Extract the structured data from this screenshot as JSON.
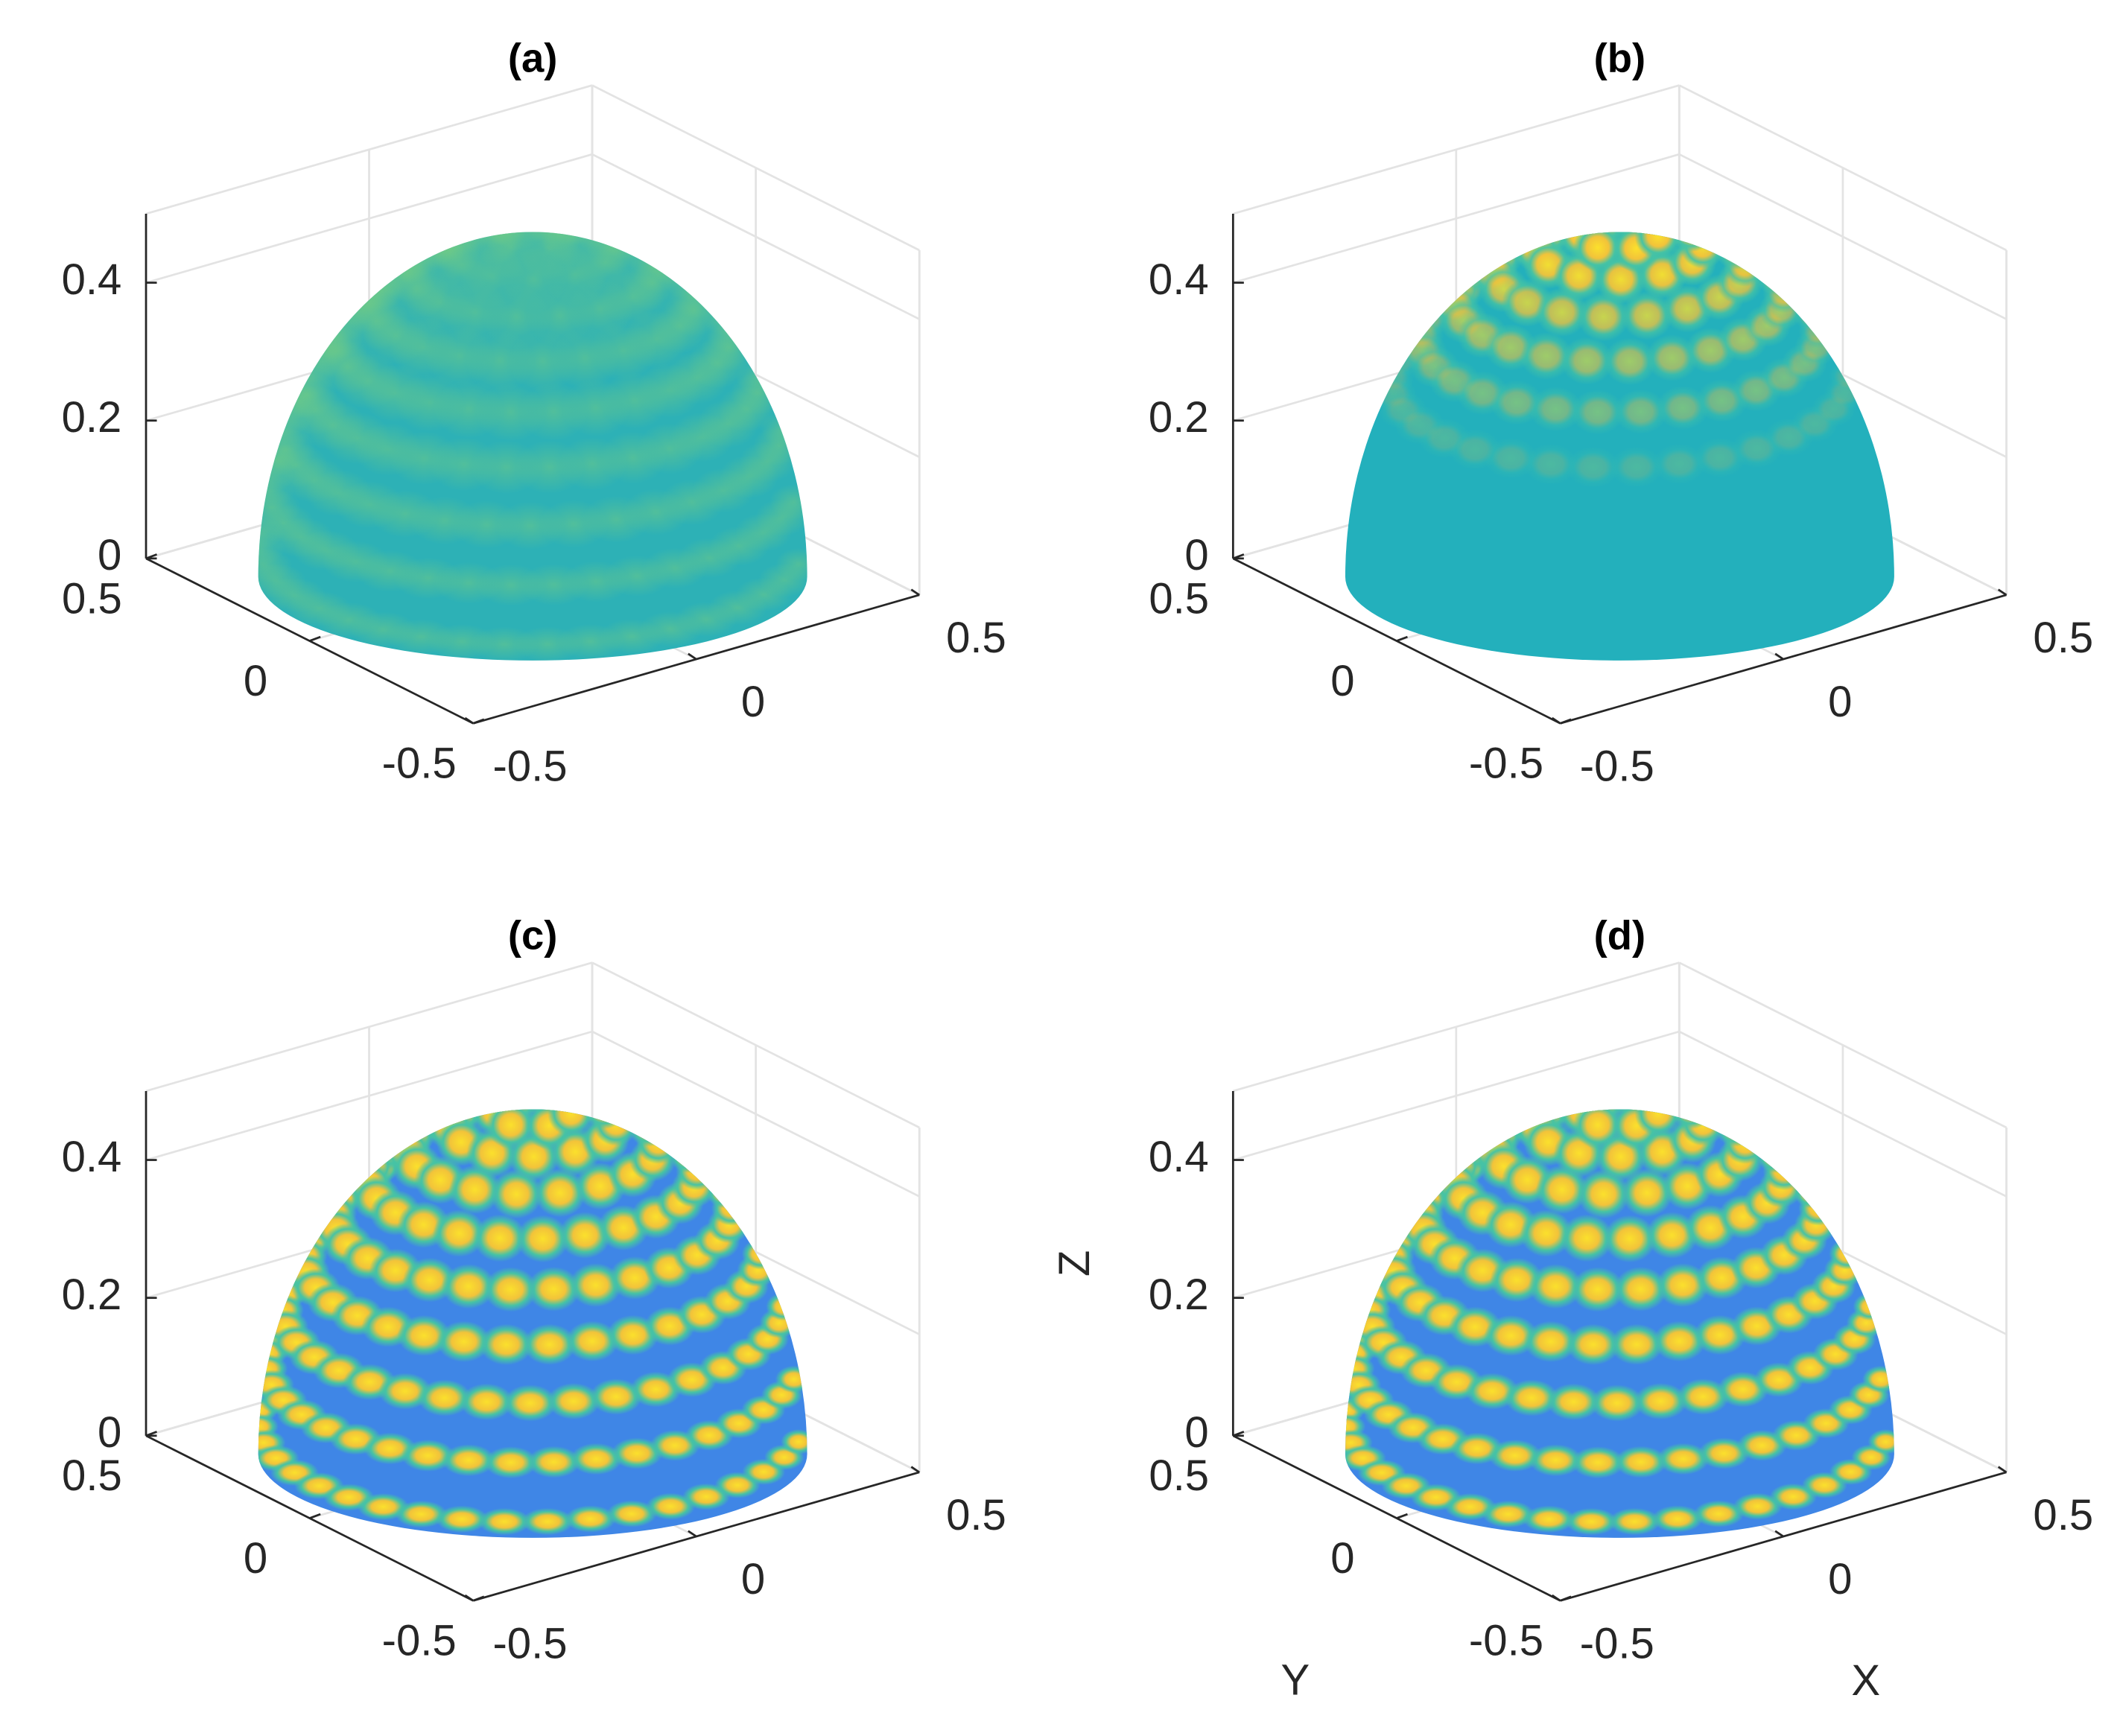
{
  "chart_data": [
    {
      "type": "surface",
      "title": "(a)",
      "xlim": [
        -0.5,
        0.5
      ],
      "ylim": [
        -0.5,
        0.5
      ],
      "zlim": [
        0,
        0.5
      ],
      "xticks": [
        -0.5,
        0,
        0.5
      ],
      "yticks": [
        -0.5,
        0,
        0.5
      ],
      "zticks": [
        0,
        0.2,
        0.4
      ],
      "grid": true
    },
    {
      "type": "surface",
      "title": "(b)",
      "xlim": [
        -0.5,
        0.5
      ],
      "ylim": [
        -0.5,
        0.5
      ],
      "zlim": [
        0,
        0.5
      ],
      "xticks": [
        -0.5,
        0,
        0.5
      ],
      "yticks": [
        -0.5,
        0,
        0.5
      ],
      "zticks": [
        0,
        0.2,
        0.4
      ],
      "grid": true
    },
    {
      "type": "surface",
      "title": "(c)",
      "xlim": [
        -0.5,
        0.5
      ],
      "ylim": [
        -0.5,
        0.5
      ],
      "zlim": [
        0,
        0.5
      ],
      "xticks": [
        -0.5,
        0,
        0.5
      ],
      "yticks": [
        -0.5,
        0,
        0.5
      ],
      "zticks": [
        0,
        0.2,
        0.4
      ],
      "grid": true
    },
    {
      "type": "surface",
      "title": "(d)",
      "xlim": [
        -0.5,
        0.5
      ],
      "ylim": [
        -0.5,
        0.5
      ],
      "zlim": [
        0,
        0.5
      ],
      "xticks": [
        -0.5,
        0,
        0.5
      ],
      "yticks": [
        -0.5,
        0,
        0.5
      ],
      "zticks": [
        0,
        0.2,
        0.4
      ],
      "grid": true,
      "xlabel": "X",
      "ylabel": "Y",
      "zlabel": "Z"
    }
  ]
}
